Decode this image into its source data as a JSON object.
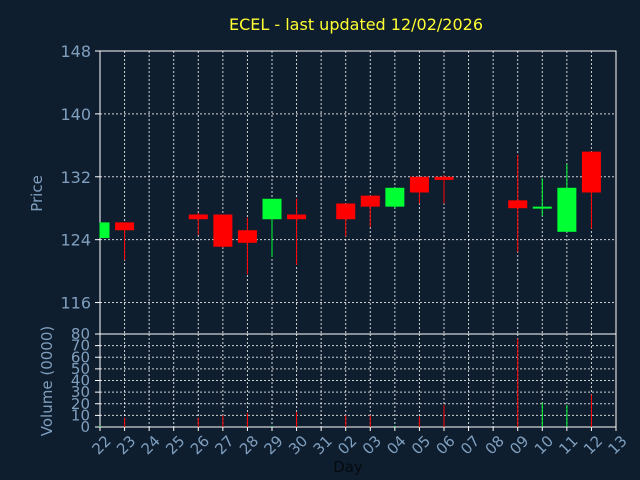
{
  "title": "ECEL - last updated 12/02/2026",
  "chart_data": [
    {
      "type": "candlestick",
      "ylabel": "Price",
      "ylim": [
        112,
        148
      ],
      "yticks": [
        116,
        124,
        132,
        140,
        148
      ],
      "grid": true,
      "x_tick_labels": [
        "22",
        "23",
        "24",
        "25",
        "26",
        "27",
        "28",
        "29",
        "30",
        "31",
        "02",
        "03",
        "04",
        "05",
        "06",
        "07",
        "08",
        "09",
        "10",
        "11",
        "12",
        "13"
      ],
      "candles": [
        {
          "day": "22",
          "open": 124.2,
          "close": 126.2,
          "high": 126.2,
          "low": 124.2
        },
        {
          "day": "23",
          "open": 126.2,
          "close": 125.2,
          "high": 126.2,
          "low": 121.4
        },
        {
          "day": "26",
          "open": 127.2,
          "close": 126.6,
          "high": 127.4,
          "low": 124.6
        },
        {
          "day": "27",
          "open": 127.2,
          "close": 123.1,
          "high": 127.2,
          "low": 123.0
        },
        {
          "day": "28",
          "open": 125.2,
          "close": 123.6,
          "high": 126.8,
          "low": 119.6
        },
        {
          "day": "29",
          "open": 126.6,
          "close": 129.2,
          "high": 129.2,
          "low": 121.8
        },
        {
          "day": "30",
          "open": 127.2,
          "close": 126.6,
          "high": 129.2,
          "low": 120.8
        },
        {
          "day": "02",
          "open": 128.6,
          "close": 126.6,
          "high": 128.6,
          "low": 124.4
        },
        {
          "day": "03",
          "open": 129.6,
          "close": 128.2,
          "high": 129.6,
          "low": 125.6
        },
        {
          "day": "04",
          "open": 128.2,
          "close": 130.6,
          "high": 130.6,
          "low": 128.0
        },
        {
          "day": "05",
          "open": 132.0,
          "close": 130.0,
          "high": 132.0,
          "low": 128.6
        },
        {
          "day": "06",
          "open": 132.0,
          "close": 131.6,
          "high": 132.2,
          "low": 128.6
        },
        {
          "day": "09",
          "open": 129.0,
          "close": 128.0,
          "high": 134.8,
          "low": 122.4
        },
        {
          "day": "10",
          "open": 128.0,
          "close": 128.2,
          "high": 131.8,
          "low": 127.0
        },
        {
          "day": "11",
          "open": 125.0,
          "close": 130.6,
          "high": 133.6,
          "low": 125.0
        },
        {
          "day": "12",
          "open": 135.2,
          "close": 130.0,
          "high": 135.2,
          "low": 125.4
        }
      ]
    },
    {
      "type": "bar",
      "ylabel": "Volume (0000)",
      "xlabel": "Day",
      "ylim": [
        0,
        80
      ],
      "yticks": [
        0,
        10,
        20,
        30,
        40,
        50,
        60,
        70,
        80
      ],
      "values": [
        {
          "day": "22",
          "volume": 1,
          "up": true
        },
        {
          "day": "23",
          "volume": 8,
          "up": false
        },
        {
          "day": "26",
          "volume": 8,
          "up": false
        },
        {
          "day": "27",
          "volume": 10,
          "up": false
        },
        {
          "day": "28",
          "volume": 12,
          "up": false
        },
        {
          "day": "29",
          "volume": 1,
          "up": true
        },
        {
          "day": "30",
          "volume": 13,
          "up": false
        },
        {
          "day": "02",
          "volume": 10,
          "up": false
        },
        {
          "day": "03",
          "volume": 10,
          "up": false
        },
        {
          "day": "04",
          "volume": 1,
          "up": true
        },
        {
          "day": "05",
          "volume": 9,
          "up": false
        },
        {
          "day": "06",
          "volume": 19,
          "up": false
        },
        {
          "day": "09",
          "volume": 76,
          "up": false
        },
        {
          "day": "10",
          "volume": 21,
          "up": true
        },
        {
          "day": "11",
          "volume": 19,
          "up": true
        },
        {
          "day": "12",
          "volume": 28,
          "up": false
        }
      ]
    }
  ],
  "colors": {
    "background": "#0f1e2e",
    "title": "#ffff33",
    "axis_text": "#7f9fbf",
    "up": "#00ff33",
    "down": "#ff0000",
    "grid": "#ffffff"
  }
}
